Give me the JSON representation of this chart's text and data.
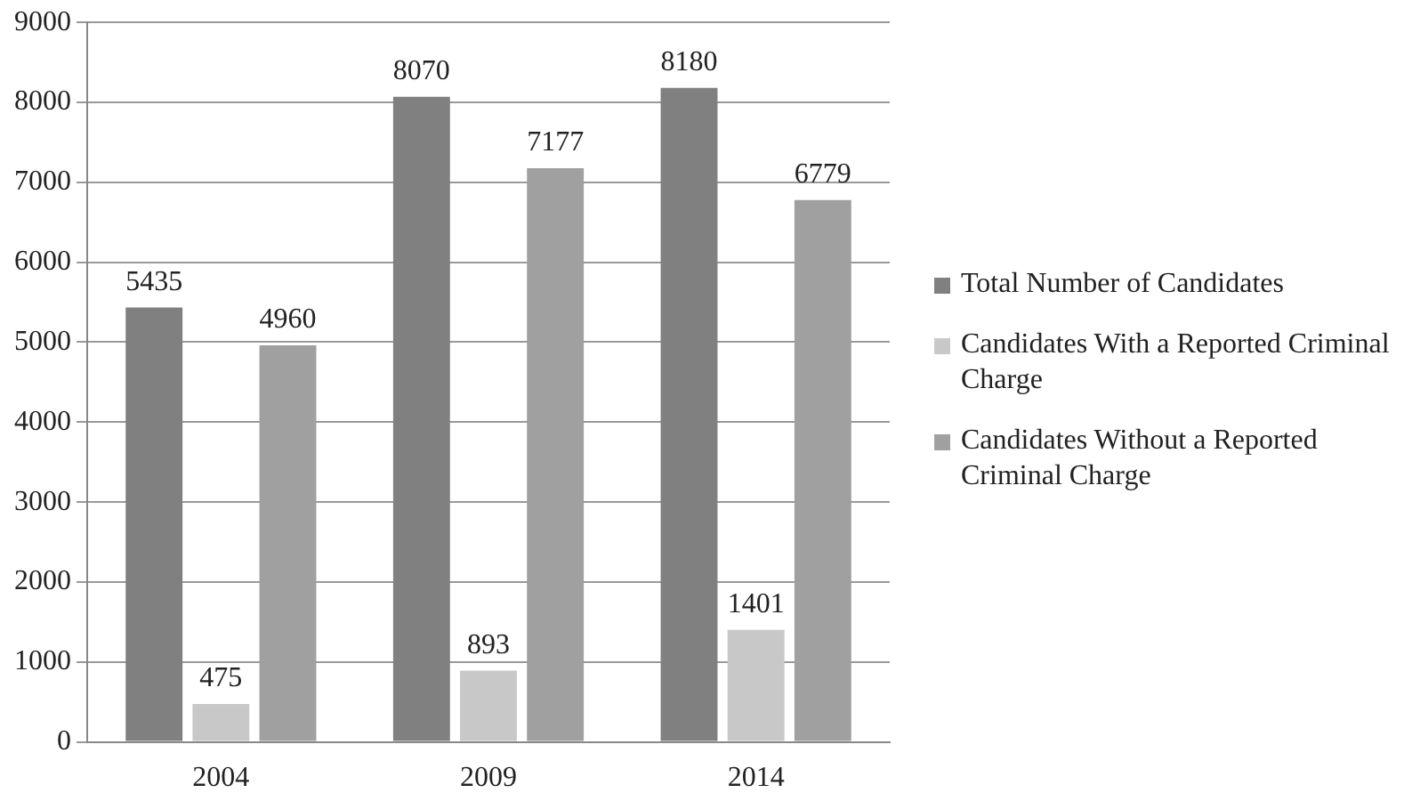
{
  "chart_data": {
    "type": "bar",
    "categories": [
      "2004",
      "2009",
      "2014"
    ],
    "series": [
      {
        "name": "Total Number of Candidates",
        "color": "#808080",
        "values": [
          5435,
          8070,
          8180
        ]
      },
      {
        "name": "Candidates With a Reported Criminal Charge",
        "color": "#c8c8c8",
        "values": [
          475,
          893,
          1401
        ]
      },
      {
        "name": "Candidates Without a Reported Criminal Charge",
        "color": "#a0a0a0",
        "values": [
          4960,
          7177,
          6779
        ]
      }
    ],
    "ylim": [
      0,
      9000
    ],
    "yticks": [
      0,
      1000,
      2000,
      3000,
      4000,
      5000,
      6000,
      7000,
      8000,
      9000
    ],
    "grid": "y",
    "legend": "right",
    "data_labels": true
  }
}
